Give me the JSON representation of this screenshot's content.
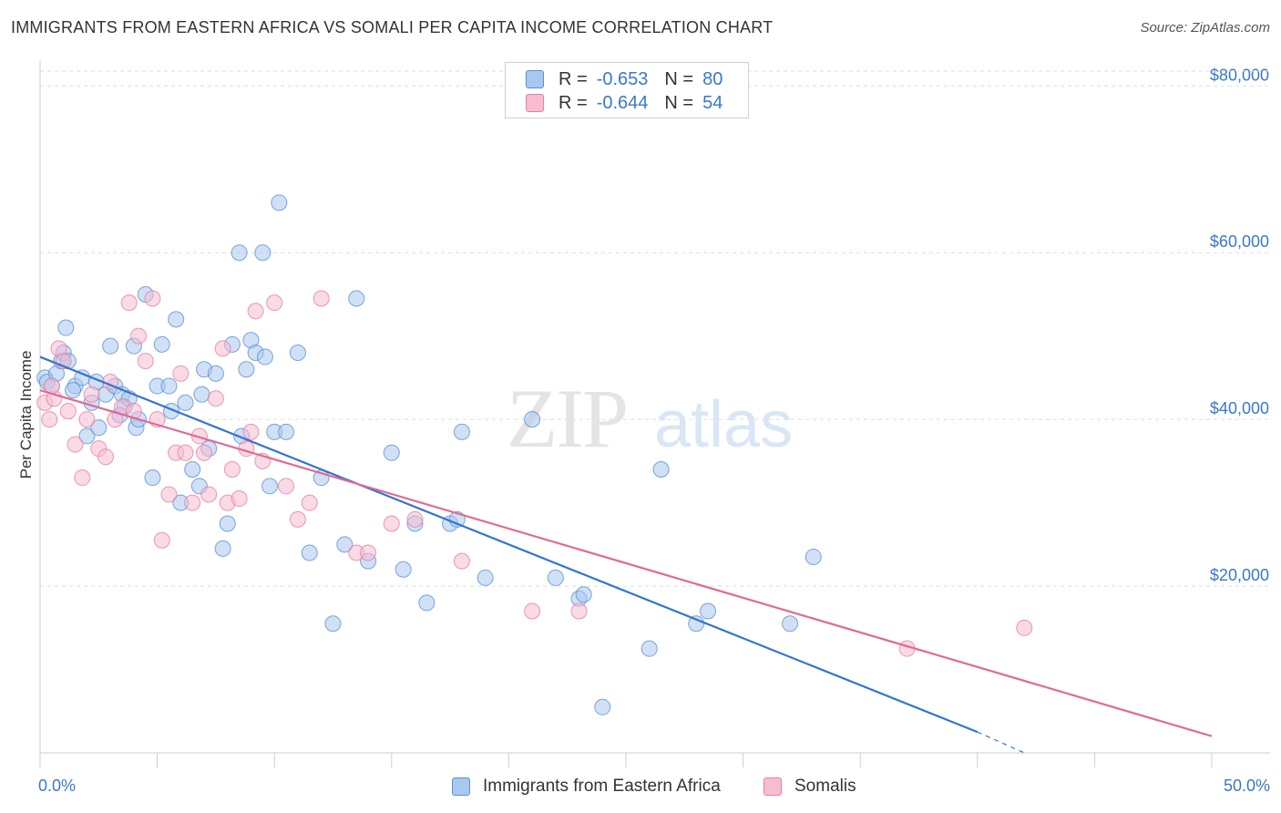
{
  "title": "IMMIGRANTS FROM EASTERN AFRICA VS SOMALI PER CAPITA INCOME CORRELATION CHART",
  "source": "Source: ZipAtlas.com",
  "watermark": {
    "zip": "ZIP",
    "atlas": "atlas"
  },
  "legend_top": {
    "rows": [
      {
        "r_label": "R =",
        "r_value": "-0.653",
        "n_label": "N =",
        "n_value": "80"
      },
      {
        "r_label": "R =",
        "r_value": "-0.644",
        "n_label": "N =",
        "n_value": "54"
      }
    ]
  },
  "x_axis": {
    "min_label": "0.0%",
    "max_label": "50.0%"
  },
  "colors": {
    "blue_fill": "#a9c8ef",
    "blue_stroke": "#5b8fd6",
    "blue_line": "#3474d0",
    "pink_fill": "#f6bcd0",
    "pink_stroke": "#e57fa2",
    "pink_line": "#e06a95",
    "axis_text": "#3a78c9",
    "grid": "#dddddd"
  },
  "chart_data": {
    "type": "scatter",
    "title": "IMMIGRANTS FROM EASTERN AFRICA VS SOMALI PER CAPITA INCOME CORRELATION CHART",
    "xlabel": "",
    "ylabel": "Per Capita Income",
    "xlim": [
      0,
      50
    ],
    "ylim": [
      0,
      82000
    ],
    "y_ticks": [
      {
        "value": 20000,
        "label": "$20,000"
      },
      {
        "value": 40000,
        "label": "$40,000"
      },
      {
        "value": 60000,
        "label": "$60,000"
      },
      {
        "value": 80000,
        "label": "$80,000"
      }
    ],
    "grid": true,
    "legend_position": "bottom",
    "series": [
      {
        "name": "Immigrants from Eastern Africa",
        "color": "#5b8fd6",
        "trend": {
          "x": [
            0,
            40
          ],
          "y": [
            47500,
            2500
          ],
          "dash_to": [
            42,
            0
          ]
        },
        "points": [
          [
            0.2,
            45000
          ],
          [
            0.3,
            44500
          ],
          [
            0.5,
            44000
          ],
          [
            0.7,
            45500
          ],
          [
            0.9,
            47000
          ],
          [
            1.0,
            48000
          ],
          [
            1.1,
            51000
          ],
          [
            1.2,
            47000
          ],
          [
            1.5,
            44000
          ],
          [
            1.8,
            45000
          ],
          [
            2.0,
            38000
          ],
          [
            2.2,
            42000
          ],
          [
            2.5,
            39000
          ],
          [
            2.8,
            43000
          ],
          [
            3.0,
            48800
          ],
          [
            3.2,
            44000
          ],
          [
            3.5,
            43000
          ],
          [
            3.6,
            41500
          ],
          [
            3.8,
            42500
          ],
          [
            4.0,
            48800
          ],
          [
            4.1,
            39000
          ],
          [
            4.2,
            40000
          ],
          [
            4.5,
            55000
          ],
          [
            4.8,
            33000
          ],
          [
            5.0,
            44000
          ],
          [
            5.2,
            49000
          ],
          [
            5.5,
            44000
          ],
          [
            5.8,
            52000
          ],
          [
            6.0,
            30000
          ],
          [
            6.2,
            42000
          ],
          [
            6.5,
            34000
          ],
          [
            6.8,
            32000
          ],
          [
            7.0,
            46000
          ],
          [
            7.2,
            36500
          ],
          [
            7.5,
            45500
          ],
          [
            7.8,
            24500
          ],
          [
            8.0,
            27500
          ],
          [
            8.2,
            49000
          ],
          [
            8.5,
            60000
          ],
          [
            8.8,
            46000
          ],
          [
            9.0,
            49500
          ],
          [
            9.2,
            48000
          ],
          [
            9.5,
            60000
          ],
          [
            9.8,
            32000
          ],
          [
            10.0,
            38500
          ],
          [
            10.2,
            66000
          ],
          [
            10.5,
            38500
          ],
          [
            11.0,
            48000
          ],
          [
            11.5,
            24000
          ],
          [
            12.0,
            33000
          ],
          [
            12.5,
            15500
          ],
          [
            13.0,
            25000
          ],
          [
            13.5,
            54500
          ],
          [
            14.0,
            23000
          ],
          [
            15.0,
            36000
          ],
          [
            15.5,
            22000
          ],
          [
            16.0,
            27500
          ],
          [
            16.5,
            18000
          ],
          [
            17.5,
            27500
          ],
          [
            17.8,
            28000
          ],
          [
            18.0,
            38500
          ],
          [
            19.0,
            21000
          ],
          [
            21.0,
            40000
          ],
          [
            22.0,
            21000
          ],
          [
            23.0,
            18500
          ],
          [
            23.2,
            19000
          ],
          [
            24.0,
            5500
          ],
          [
            26.0,
            12500
          ],
          [
            26.5,
            34000
          ],
          [
            28.0,
            15500
          ],
          [
            28.5,
            17000
          ],
          [
            32.0,
            15500
          ],
          [
            33.0,
            23500
          ],
          [
            1.4,
            43500
          ],
          [
            2.4,
            44500
          ],
          [
            3.4,
            40500
          ],
          [
            5.6,
            41000
          ],
          [
            6.9,
            43000
          ],
          [
            8.6,
            38000
          ],
          [
            9.6,
            47500
          ]
        ]
      },
      {
        "name": "Somalis",
        "color": "#e57fa2",
        "trend": {
          "x": [
            0,
            50
          ],
          "y": [
            43500,
            2000
          ]
        },
        "points": [
          [
            0.2,
            42000
          ],
          [
            0.4,
            40000
          ],
          [
            0.6,
            42500
          ],
          [
            0.8,
            48500
          ],
          [
            1.0,
            47000
          ],
          [
            1.2,
            41000
          ],
          [
            1.5,
            37000
          ],
          [
            1.8,
            33000
          ],
          [
            2.0,
            40000
          ],
          [
            2.2,
            43000
          ],
          [
            2.5,
            36500
          ],
          [
            2.8,
            35500
          ],
          [
            3.0,
            44500
          ],
          [
            3.2,
            40000
          ],
          [
            3.5,
            41500
          ],
          [
            3.8,
            54000
          ],
          [
            4.0,
            41000
          ],
          [
            4.2,
            50000
          ],
          [
            4.5,
            47000
          ],
          [
            4.8,
            54500
          ],
          [
            5.0,
            40000
          ],
          [
            5.2,
            25500
          ],
          [
            5.5,
            31000
          ],
          [
            5.8,
            36000
          ],
          [
            6.0,
            45500
          ],
          [
            6.2,
            36000
          ],
          [
            6.5,
            30000
          ],
          [
            6.8,
            38000
          ],
          [
            7.0,
            36000
          ],
          [
            7.2,
            31000
          ],
          [
            7.5,
            42500
          ],
          [
            7.8,
            48500
          ],
          [
            8.0,
            30000
          ],
          [
            8.2,
            34000
          ],
          [
            8.5,
            30500
          ],
          [
            8.8,
            36500
          ],
          [
            9.0,
            38500
          ],
          [
            9.2,
            53000
          ],
          [
            9.5,
            35000
          ],
          [
            10.0,
            54000
          ],
          [
            10.5,
            32000
          ],
          [
            11.0,
            28000
          ],
          [
            11.5,
            30000
          ],
          [
            12.0,
            54500
          ],
          [
            13.5,
            24000
          ],
          [
            14.0,
            24000
          ],
          [
            15.0,
            27500
          ],
          [
            16.0,
            28000
          ],
          [
            18.0,
            23000
          ],
          [
            21.0,
            17000
          ],
          [
            23.0,
            17000
          ],
          [
            37.0,
            12500
          ],
          [
            42.0,
            15000
          ],
          [
            0.5,
            44000
          ]
        ]
      }
    ]
  },
  "bottom_legend": [
    {
      "label": "Immigrants from Eastern Africa"
    },
    {
      "label": "Somalis"
    }
  ]
}
